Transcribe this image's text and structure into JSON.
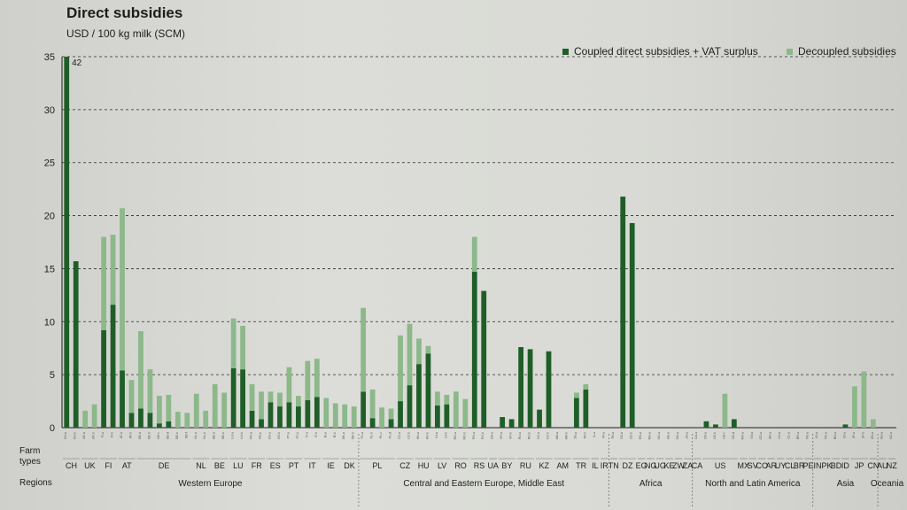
{
  "chart_data": {
    "type": "bar",
    "title": "Direct subsidies",
    "ylabel": "USD / 100 kg milk (SCM)",
    "ylim": [
      0,
      35
    ],
    "yticks": [
      0,
      5,
      10,
      15,
      20,
      25,
      30,
      35
    ],
    "grid": "dashed horizontal",
    "legend_position": "top-right",
    "colors": {
      "coupled": "#1f5e28",
      "decoupled": "#8cb88a"
    },
    "series": [
      {
        "key": "coupled",
        "name": "Coupled direct subsidies + VAT surplus"
      },
      {
        "key": "decoupled",
        "name": "Decoupled subsidies"
      }
    ],
    "annotations": [
      {
        "farm": "CH-a",
        "label": "42"
      }
    ],
    "farms": [
      {
        "id": "CH-a",
        "country": "CH",
        "coupled": 42,
        "decoupled": 0
      },
      {
        "id": "CH-b",
        "country": "CH",
        "coupled": 15.7,
        "decoupled": 0
      },
      {
        "id": "UK-a",
        "country": "UK",
        "coupled": 0,
        "decoupled": 1.6
      },
      {
        "id": "UK-b",
        "country": "UK",
        "coupled": 0,
        "decoupled": 2.2
      },
      {
        "id": "FI-a",
        "country": "FI",
        "coupled": 9.2,
        "decoupled": 8.8
      },
      {
        "id": "FI-b",
        "country": "FI",
        "coupled": 11.6,
        "decoupled": 6.6
      },
      {
        "id": "AT-a",
        "country": "AT",
        "coupled": 5.4,
        "decoupled": 15.3
      },
      {
        "id": "AT-b",
        "country": "AT",
        "coupled": 1.4,
        "decoupled": 3.1
      },
      {
        "id": "DE-a",
        "country": "DE",
        "coupled": 1.8,
        "decoupled": 7.3
      },
      {
        "id": "DE-b",
        "country": "DE",
        "coupled": 1.4,
        "decoupled": 4.1
      },
      {
        "id": "DE-c",
        "country": "DE",
        "coupled": 0.4,
        "decoupled": 2.6
      },
      {
        "id": "DE-d",
        "country": "DE",
        "coupled": 0.6,
        "decoupled": 2.5
      },
      {
        "id": "DE-e",
        "country": "DE",
        "coupled": 0,
        "decoupled": 1.5
      },
      {
        "id": "DE-f",
        "country": "DE",
        "coupled": 0,
        "decoupled": 1.4
      },
      {
        "id": "NL-a",
        "country": "NL",
        "coupled": 0,
        "decoupled": 3.2
      },
      {
        "id": "NL-b",
        "country": "NL",
        "coupled": 0,
        "decoupled": 1.6
      },
      {
        "id": "BE-a",
        "country": "BE",
        "coupled": 0,
        "decoupled": 4.1
      },
      {
        "id": "BE-b",
        "country": "BE",
        "coupled": 0,
        "decoupled": 3.3
      },
      {
        "id": "LU-a",
        "country": "LU",
        "coupled": 5.6,
        "decoupled": 4.7
      },
      {
        "id": "LU-b",
        "country": "LU",
        "coupled": 5.5,
        "decoupled": 4.1
      },
      {
        "id": "FR-a",
        "country": "FR",
        "coupled": 1.6,
        "decoupled": 2.5
      },
      {
        "id": "FR-b",
        "country": "FR",
        "coupled": 0.8,
        "decoupled": 2.6
      },
      {
        "id": "ES-a",
        "country": "ES",
        "coupled": 2.4,
        "decoupled": 1.0
      },
      {
        "id": "ES-b",
        "country": "ES",
        "coupled": 2.0,
        "decoupled": 1.3
      },
      {
        "id": "PT-a",
        "country": "PT",
        "coupled": 2.4,
        "decoupled": 3.3
      },
      {
        "id": "PT-b",
        "country": "PT",
        "coupled": 2.0,
        "decoupled": 1.0
      },
      {
        "id": "IT-a",
        "country": "IT",
        "coupled": 2.6,
        "decoupled": 3.7
      },
      {
        "id": "IT-b",
        "country": "IT",
        "coupled": 2.9,
        "decoupled": 3.6
      },
      {
        "id": "IE-a",
        "country": "IE",
        "coupled": 0,
        "decoupled": 2.8
      },
      {
        "id": "IE-b",
        "country": "IE",
        "coupled": 0,
        "decoupled": 2.3
      },
      {
        "id": "DK-a",
        "country": "DK",
        "coupled": 0,
        "decoupled": 2.2
      },
      {
        "id": "DK-b",
        "country": "DK",
        "coupled": 0,
        "decoupled": 2.0
      },
      {
        "id": "PL-a",
        "country": "PL",
        "coupled": 3.4,
        "decoupled": 7.9
      },
      {
        "id": "PL-b",
        "country": "PL",
        "coupled": 0.9,
        "decoupled": 2.7
      },
      {
        "id": "PL-c",
        "country": "PL",
        "coupled": 0,
        "decoupled": 1.9
      },
      {
        "id": "PL-d",
        "country": "PL",
        "coupled": 0.8,
        "decoupled": 1.0
      },
      {
        "id": "CZ-a",
        "country": "CZ",
        "coupled": 2.5,
        "decoupled": 6.2
      },
      {
        "id": "CZ-b",
        "country": "CZ",
        "coupled": 4.0,
        "decoupled": 5.8
      },
      {
        "id": "HU-a",
        "country": "HU",
        "coupled": 6.0,
        "decoupled": 2.4
      },
      {
        "id": "HU-b",
        "country": "HU",
        "coupled": 7.0,
        "decoupled": 0.7
      },
      {
        "id": "LV-a",
        "country": "LV",
        "coupled": 2.1,
        "decoupled": 1.3
      },
      {
        "id": "LV-b",
        "country": "LV",
        "coupled": 2.2,
        "decoupled": 0.9
      },
      {
        "id": "RO-a",
        "country": "RO",
        "coupled": 0,
        "decoupled": 3.4
      },
      {
        "id": "RO-b",
        "country": "RO",
        "coupled": 0,
        "decoupled": 2.7
      },
      {
        "id": "RS-a",
        "country": "RS",
        "coupled": 14.7,
        "decoupled": 3.3
      },
      {
        "id": "RS-b",
        "country": "RS",
        "coupled": 12.9,
        "decoupled": 0
      },
      {
        "id": "UA-a",
        "country": "UA",
        "coupled": 0,
        "decoupled": 0
      },
      {
        "id": "BY-a",
        "country": "BY",
        "coupled": 1.0,
        "decoupled": 0
      },
      {
        "id": "BY-b",
        "country": "BY",
        "coupled": 0.8,
        "decoupled": 0
      },
      {
        "id": "RU-a",
        "country": "RU",
        "coupled": 7.6,
        "decoupled": 0
      },
      {
        "id": "RU-b",
        "country": "RU",
        "coupled": 7.4,
        "decoupled": 0
      },
      {
        "id": "KZ-a",
        "country": "KZ",
        "coupled": 1.7,
        "decoupled": 0
      },
      {
        "id": "KZ-b",
        "country": "KZ",
        "coupled": 7.2,
        "decoupled": 0
      },
      {
        "id": "AM-a",
        "country": "AM",
        "coupled": 0,
        "decoupled": 0
      },
      {
        "id": "AM-b",
        "country": "AM",
        "coupled": 0,
        "decoupled": 0
      },
      {
        "id": "TR-a",
        "country": "TR",
        "coupled": 2.8,
        "decoupled": 0.5
      },
      {
        "id": "TR-b",
        "country": "TR",
        "coupled": 3.6,
        "decoupled": 0.5
      },
      {
        "id": "IL-a",
        "country": "IL",
        "coupled": 0,
        "decoupled": 0
      },
      {
        "id": "IR-a",
        "country": "IR",
        "coupled": 0,
        "decoupled": 0
      },
      {
        "id": "TN-a",
        "country": "TN",
        "coupled": 0,
        "decoupled": 0
      },
      {
        "id": "DZ-a",
        "country": "DZ",
        "coupled": 21.8,
        "decoupled": 0
      },
      {
        "id": "DZ-b",
        "country": "DZ",
        "coupled": 19.3,
        "decoupled": 0
      },
      {
        "id": "EG-a",
        "country": "EG",
        "coupled": 0,
        "decoupled": 0
      },
      {
        "id": "NG-a",
        "country": "NG",
        "coupled": 0,
        "decoupled": 0
      },
      {
        "id": "UG-a",
        "country": "UG",
        "coupled": 0,
        "decoupled": 0
      },
      {
        "id": "KE-a",
        "country": "KE",
        "coupled": 0,
        "decoupled": 0
      },
      {
        "id": "ZW-a",
        "country": "ZW",
        "coupled": 0,
        "decoupled": 0
      },
      {
        "id": "ZA-a",
        "country": "ZA",
        "coupled": 0,
        "decoupled": 0
      },
      {
        "id": "CA-a",
        "country": "CA",
        "coupled": 0,
        "decoupled": 0
      },
      {
        "id": "US-a",
        "country": "US",
        "coupled": 0.6,
        "decoupled": 0
      },
      {
        "id": "US-b",
        "country": "US",
        "coupled": 0.3,
        "decoupled": 0
      },
      {
        "id": "US-c",
        "country": "US",
        "coupled": 0,
        "decoupled": 3.2
      },
      {
        "id": "US-d",
        "country": "US",
        "coupled": 0.8,
        "decoupled": 0
      },
      {
        "id": "MX-a",
        "country": "MX",
        "coupled": 0,
        "decoupled": 0
      },
      {
        "id": "SV-a",
        "country": "SV",
        "coupled": 0,
        "decoupled": 0
      },
      {
        "id": "CO-a",
        "country": "CO",
        "coupled": 0,
        "decoupled": 0
      },
      {
        "id": "AR-a",
        "country": "AR",
        "coupled": 0,
        "decoupled": 0
      },
      {
        "id": "UY-a",
        "country": "UY",
        "coupled": 0,
        "decoupled": 0
      },
      {
        "id": "CL-a",
        "country": "CL",
        "coupled": 0,
        "decoupled": 0
      },
      {
        "id": "BR-a",
        "country": "BR",
        "coupled": 0,
        "decoupled": 0
      },
      {
        "id": "PE-a",
        "country": "PE",
        "coupled": 0,
        "decoupled": 0
      },
      {
        "id": "IN-a",
        "country": "IN",
        "coupled": 0,
        "decoupled": 0
      },
      {
        "id": "PK-a",
        "country": "PK",
        "coupled": 0,
        "decoupled": 0
      },
      {
        "id": "BD-a",
        "country": "BD",
        "coupled": 0,
        "decoupled": 0
      },
      {
        "id": "ID-a",
        "country": "ID",
        "coupled": 0.3,
        "decoupled": 0
      },
      {
        "id": "JP-a",
        "country": "JP",
        "coupled": 0,
        "decoupled": 3.9
      },
      {
        "id": "JP-b",
        "country": "JP",
        "coupled": 0,
        "decoupled": 5.3
      },
      {
        "id": "CN-a",
        "country": "CN",
        "coupled": 0,
        "decoupled": 0.8
      },
      {
        "id": "AU-a",
        "country": "AU",
        "coupled": 0,
        "decoupled": 0
      },
      {
        "id": "NZ-a",
        "country": "NZ",
        "coupled": 0,
        "decoupled": 0
      }
    ],
    "countries": [
      {
        "code": "CH",
        "first": "CH-a",
        "last": "CH-b"
      },
      {
        "code": "UK",
        "first": "UK-a",
        "last": "UK-b"
      },
      {
        "code": "FI",
        "first": "FI-a",
        "last": "FI-b"
      },
      {
        "code": "AT",
        "first": "AT-a",
        "last": "AT-b"
      },
      {
        "code": "DE",
        "first": "DE-a",
        "last": "DE-f"
      },
      {
        "code": "NL",
        "first": "NL-a",
        "last": "NL-b"
      },
      {
        "code": "BE",
        "first": "BE-a",
        "last": "BE-b"
      },
      {
        "code": "LU",
        "first": "LU-a",
        "last": "LU-b"
      },
      {
        "code": "FR",
        "first": "FR-a",
        "last": "FR-b"
      },
      {
        "code": "ES",
        "first": "ES-a",
        "last": "ES-b"
      },
      {
        "code": "PT",
        "first": "PT-a",
        "last": "PT-b"
      },
      {
        "code": "IT",
        "first": "IT-a",
        "last": "IT-b"
      },
      {
        "code": "IE",
        "first": "IE-a",
        "last": "IE-b"
      },
      {
        "code": "DK",
        "first": "DK-a",
        "last": "DK-b"
      },
      {
        "code": "PL",
        "first": "PL-a",
        "last": "PL-d"
      },
      {
        "code": "CZ",
        "first": "CZ-a",
        "last": "CZ-b"
      },
      {
        "code": "HU",
        "first": "HU-a",
        "last": "HU-b"
      },
      {
        "code": "LV",
        "first": "LV-a",
        "last": "LV-b"
      },
      {
        "code": "RO",
        "first": "RO-a",
        "last": "RO-b"
      },
      {
        "code": "RS",
        "first": "RS-a",
        "last": "RS-b"
      },
      {
        "code": "UA",
        "first": "UA-a",
        "last": "UA-a"
      },
      {
        "code": "BY",
        "first": "BY-a",
        "last": "BY-b"
      },
      {
        "code": "RU",
        "first": "RU-a",
        "last": "RU-b"
      },
      {
        "code": "KZ",
        "first": "KZ-a",
        "last": "KZ-b"
      },
      {
        "code": "AM",
        "first": "AM-a",
        "last": "AM-b"
      },
      {
        "code": "TR",
        "first": "TR-a",
        "last": "TR-b"
      },
      {
        "code": "IL",
        "first": "IL-a",
        "last": "IL-a"
      },
      {
        "code": "IR",
        "first": "IR-a",
        "last": "IR-a"
      },
      {
        "code": "TN",
        "first": "TN-a",
        "last": "TN-a"
      },
      {
        "code": "DZ",
        "first": "DZ-a",
        "last": "DZ-b"
      },
      {
        "code": "EG",
        "first": "EG-a",
        "last": "EG-a"
      },
      {
        "code": "NG",
        "first": "NG-a",
        "last": "NG-a"
      },
      {
        "code": "UG",
        "first": "UG-a",
        "last": "UG-a"
      },
      {
        "code": "KE",
        "first": "KE-a",
        "last": "KE-a"
      },
      {
        "code": "ZW",
        "first": "ZW-a",
        "last": "ZW-a"
      },
      {
        "code": "ZA",
        "first": "ZA-a",
        "last": "ZA-a"
      },
      {
        "code": "CA",
        "first": "CA-a",
        "last": "CA-a"
      },
      {
        "code": "US",
        "first": "US-a",
        "last": "US-d"
      },
      {
        "code": "MX",
        "first": "MX-a",
        "last": "MX-a"
      },
      {
        "code": "SV",
        "first": "SV-a",
        "last": "SV-a"
      },
      {
        "code": "CO",
        "first": "CO-a",
        "last": "CO-a"
      },
      {
        "code": "AR",
        "first": "AR-a",
        "last": "AR-a"
      },
      {
        "code": "UY",
        "first": "UY-a",
        "last": "UY-a"
      },
      {
        "code": "CL",
        "first": "CL-a",
        "last": "CL-a"
      },
      {
        "code": "BR",
        "first": "BR-a",
        "last": "BR-a"
      },
      {
        "code": "PE",
        "first": "PE-a",
        "last": "PE-a"
      },
      {
        "code": "IN",
        "first": "IN-a",
        "last": "IN-a"
      },
      {
        "code": "PK",
        "first": "PK-a",
        "last": "PK-a"
      },
      {
        "code": "BD",
        "first": "BD-a",
        "last": "BD-a"
      },
      {
        "code": "ID",
        "first": "ID-a",
        "last": "ID-a"
      },
      {
        "code": "JP",
        "first": "JP-a",
        "last": "JP-b"
      },
      {
        "code": "CN",
        "first": "CN-a",
        "last": "CN-a"
      },
      {
        "code": "AU",
        "first": "AU-a",
        "last": "AU-a"
      },
      {
        "code": "NZ",
        "first": "NZ-a",
        "last": "NZ-a"
      }
    ],
    "regions": [
      {
        "name": "Western Europe",
        "first": "CH-a",
        "last": "DK-b"
      },
      {
        "name": "Central and Eastern Europe, Middle East",
        "first": "PL-a",
        "last": "IR-a"
      },
      {
        "name": "Africa",
        "first": "TN-a",
        "last": "ZA-a"
      },
      {
        "name": "North and Latin America",
        "first": "CA-a",
        "last": "PE-a"
      },
      {
        "name": "Asia",
        "first": "IN-a",
        "last": "CN-a"
      },
      {
        "name": "Oceania",
        "first": "AU-a",
        "last": "NZ-a"
      }
    ]
  },
  "row_labels": {
    "farm_types": "Farm types",
    "regions": "Regions"
  }
}
